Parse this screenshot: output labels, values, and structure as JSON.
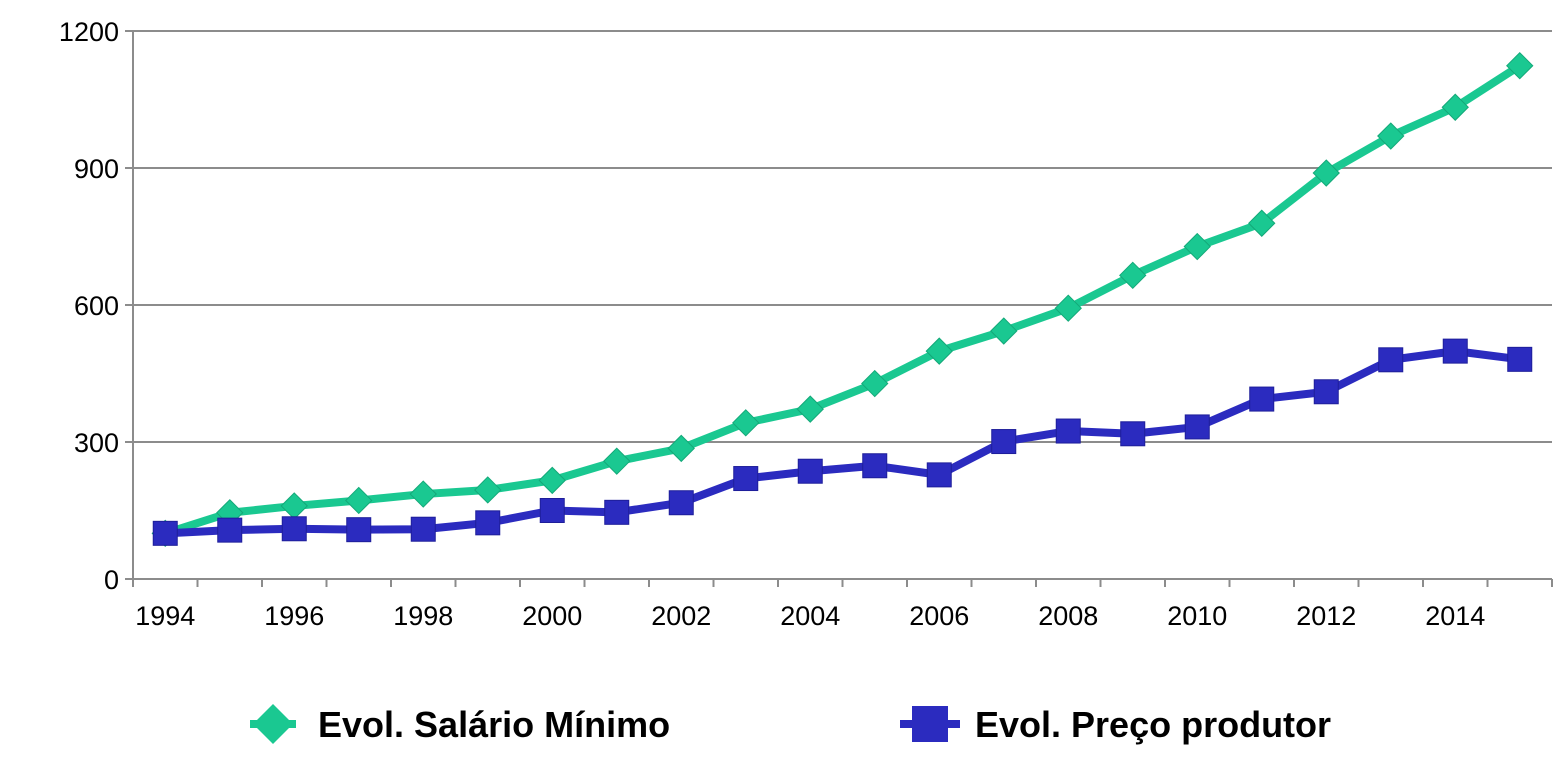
{
  "chart_data": {
    "type": "line",
    "title": "",
    "xlabel": "",
    "ylabel": "",
    "x": [
      1994,
      1995,
      1996,
      1997,
      1998,
      1999,
      2000,
      2001,
      2002,
      2003,
      2004,
      2005,
      2006,
      2007,
      2008,
      2009,
      2010,
      2011,
      2012,
      2013,
      2014,
      2015
    ],
    "x_tick_labels": [
      "1994",
      "1996",
      "1998",
      "2000",
      "2002",
      "2004",
      "2006",
      "2008",
      "2010",
      "2012",
      "2014"
    ],
    "y_tick_labels": [
      "0",
      "300",
      "600",
      "900",
      "1200"
    ],
    "ylim": [
      0,
      1200
    ],
    "grid": "horizontal",
    "legend_position": "bottom",
    "series": [
      {
        "name": "Evol. Salário Mínimo",
        "color": "#1ac891",
        "marker": "diamond",
        "values": [
          100,
          145,
          160,
          172,
          186,
          195,
          216,
          258,
          286,
          342,
          372,
          428,
          499,
          543,
          593,
          665,
          728,
          779,
          889,
          970,
          1033,
          1124
        ]
      },
      {
        "name": "Evol. Preço produtor",
        "color": "#2b2bbf",
        "marker": "square",
        "values": [
          100,
          107,
          110,
          108,
          109,
          123,
          150,
          146,
          167,
          220,
          236,
          248,
          228,
          301,
          324,
          318,
          333,
          394,
          410,
          480,
          499,
          481
        ]
      }
    ]
  }
}
